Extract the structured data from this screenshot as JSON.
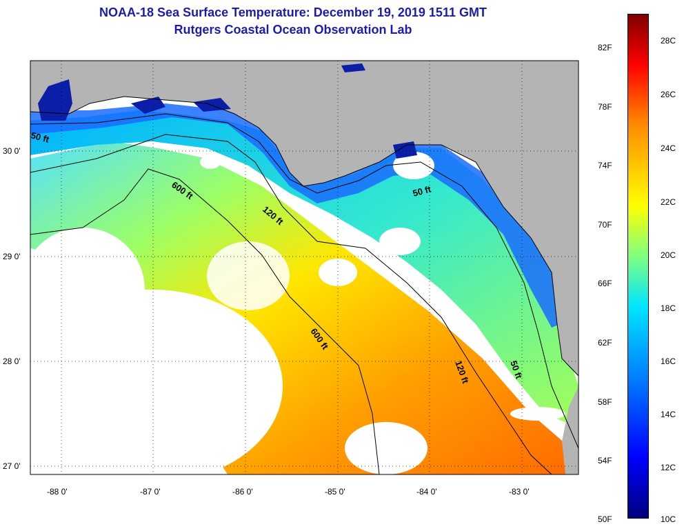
{
  "title_line1": "NOAA-18 Sea Surface Temperature:  December 19, 2019 1511 GMT",
  "title_line2": "Rutgers Coastal Ocean Observation Lab",
  "lat_labels": [
    "30 0'",
    "29 0'",
    "28 0'",
    "27 0'"
  ],
  "lon_labels": [
    "-88 0'",
    "-87 0'",
    "-86 0'",
    "-85 0'",
    "-84 0'",
    "-83 0'"
  ],
  "contour_labels": [
    "50 ft",
    "600 ft",
    "120 ft",
    "50 ft",
    "600 ft",
    "120 ft",
    "50 ft"
  ],
  "colorbar_f": [
    "82F",
    "78F",
    "74F",
    "70F",
    "66F",
    "62F",
    "58F",
    "54F",
    "50F"
  ],
  "colorbar_c": [
    "28C",
    "26C",
    "24C",
    "22C",
    "20C",
    "18C",
    "16C",
    "14C",
    "12C",
    "10C"
  ],
  "colors": {
    "land": "#b4b4b4",
    "cloud": "#ffffff",
    "title": "#1b1bb0",
    "cold": "#0000a0",
    "cool": "#00c8ff",
    "mild": "#8cff6e",
    "warm": "#ffd200",
    "hot": "#ff7800"
  }
}
